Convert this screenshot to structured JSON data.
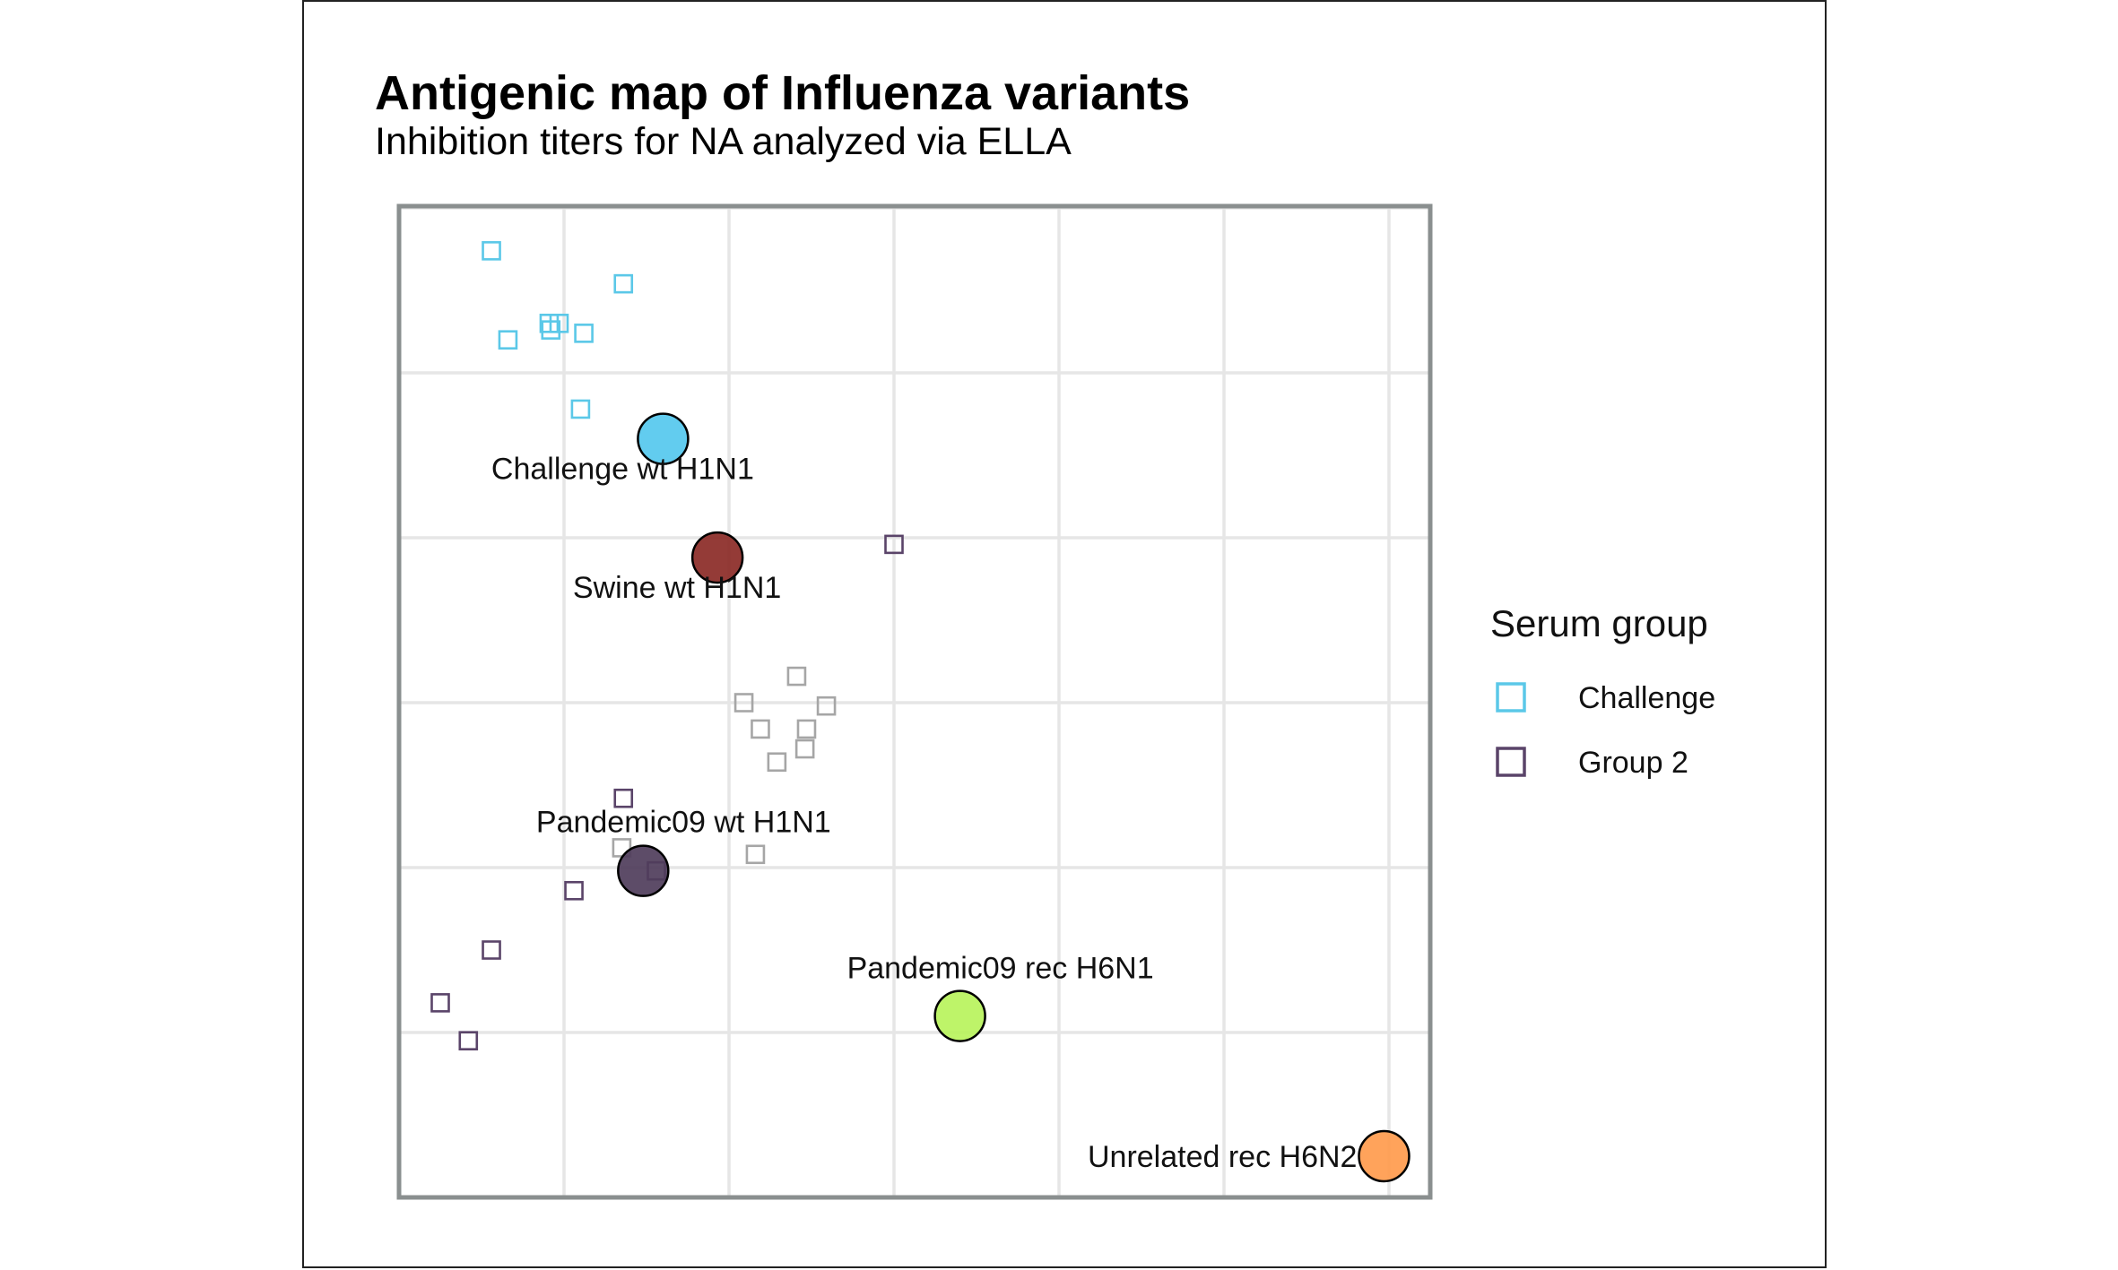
{
  "chart_data": {
    "type": "scatter",
    "title": "Antigenic map of Influenza variants",
    "subtitle": "Inhibition titers for NA analyzed via ELLA",
    "xlabel": "",
    "ylabel": "",
    "xlim": [
      0,
      6.25
    ],
    "ylim": [
      0,
      6
    ],
    "grid": true,
    "legend": {
      "title": "Serum group",
      "position": "right",
      "entries": [
        {
          "label": "Challenge",
          "color": "#5bc8e8"
        },
        {
          "label": "Group 2",
          "color": "#5a4469"
        }
      ]
    },
    "antigens": [
      {
        "label": "Challenge wt H1N1",
        "x": 1.6,
        "y": 4.6,
        "color": "#55c8ee"
      },
      {
        "label": "Swine wt H1N1",
        "x": 1.93,
        "y": 3.88,
        "color": "#8b2a26"
      },
      {
        "label": "Pandemic09 wt H1N1",
        "x": 1.48,
        "y": 1.98,
        "color": "#4f3d5b"
      },
      {
        "label": "Pandemic09 rec H6N1",
        "x": 3.4,
        "y": 1.1,
        "color": "#b9f35c"
      },
      {
        "label": "Unrelated rec H6N2",
        "x": 5.97,
        "y": 0.25,
        "color": "#ff9b4d"
      }
    ],
    "series": [
      {
        "name": "Challenge",
        "color": "#5bc8e8",
        "x": [
          0.56,
          1.36,
          0.91,
          0.97,
          0.66,
          0.92,
          1.12,
          1.1
        ],
        "y": [
          5.74,
          5.54,
          5.3,
          5.3,
          5.2,
          5.26,
          5.24,
          4.78
        ]
      },
      {
        "name": "Group 2",
        "color": "#5a4469",
        "x": [
          3.0,
          1.36,
          1.56,
          1.06,
          0.56,
          0.25,
          0.42
        ],
        "y": [
          3.96,
          2.42,
          1.98,
          1.86,
          1.5,
          1.18,
          0.95
        ]
      },
      {
        "name": "",
        "color": "#a6a6a6",
        "x": [
          2.41,
          2.09,
          2.19,
          2.59,
          2.47,
          2.46,
          2.29,
          2.16,
          1.35
        ],
        "y": [
          3.16,
          3.0,
          2.84,
          2.98,
          2.84,
          2.72,
          2.64,
          2.08,
          2.12
        ]
      }
    ]
  }
}
